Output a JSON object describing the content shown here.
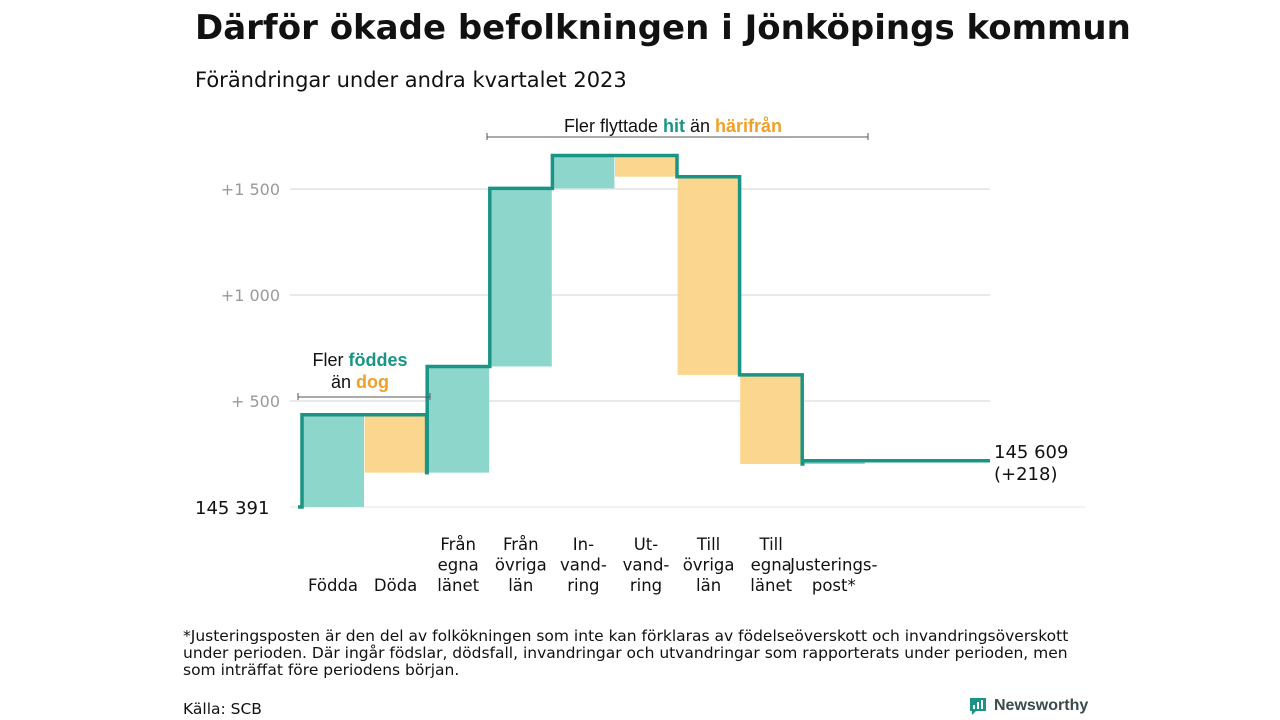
{
  "title": "Därför ökade befolkningen i Jönköpings kommun",
  "subtitle": "Förändringar under andra kvartalet 2023",
  "footnote": "*Justeringsposten är den del av folkökningen som inte kan förklaras av födelseöverskott och invandringsöverskott under perioden. Där ingår födslar, dödsfall, invandringar och utvandringar som rapporterats under perioden, men som inträffat före periodens början.",
  "source": "Källa: SCB",
  "brand": "Newsworthy",
  "colors": {
    "increase": "#8dd6cc",
    "decrease": "#fbd68e",
    "line": "#1a9484",
    "accent_teal": "#1a9484",
    "accent_orange": "#f0a028",
    "grid": "#e2e2e2"
  },
  "chart_data": {
    "type": "waterfall",
    "start_label": "145   391",
    "start_value": 145391,
    "end_label_line1": "145 609",
    "end_label_line2": "(+218)",
    "end_value": 145609,
    "y_axis": {
      "min": 0,
      "max": 1670,
      "ticks": [
        {
          "value": 500,
          "label": "+   500"
        },
        {
          "value": 1000,
          "label": "+1   000"
        },
        {
          "value": 1500,
          "label": "+1   500"
        }
      ],
      "grid": true
    },
    "steps": [
      {
        "label_lines": [
          "",
          "",
          "Födda"
        ],
        "change": 435,
        "kind": "increase"
      },
      {
        "label_lines": [
          "",
          "",
          "Döda"
        ],
        "change": -273,
        "kind": "decrease"
      },
      {
        "label_lines": [
          "Från",
          "egna",
          "länet"
        ],
        "change": 501,
        "kind": "increase"
      },
      {
        "label_lines": [
          "Från",
          "övriga",
          "län"
        ],
        "change": 840,
        "kind": "increase"
      },
      {
        "label_lines": [
          "In-",
          "vand-",
          "ring"
        ],
        "change": 155,
        "kind": "increase"
      },
      {
        "label_lines": [
          "Ut-",
          "vand-",
          "ring"
        ],
        "change": -100,
        "kind": "decrease"
      },
      {
        "label_lines": [
          "Till",
          "övriga",
          "län"
        ],
        "change": -935,
        "kind": "decrease"
      },
      {
        "label_lines": [
          "Till",
          "egna",
          "länet"
        ],
        "change": -420,
        "kind": "decrease"
      },
      {
        "label_lines": [
          "",
          "Justerings-",
          "post*"
        ],
        "change": 15,
        "kind": "increase"
      }
    ],
    "annotations": [
      {
        "id": "births",
        "line1": "Fler ",
        "hl1": "föddes",
        "line2": "än ",
        "hl2": "dog"
      },
      {
        "id": "moves",
        "line1": "Fler flyttade ",
        "hl1": "hit",
        "line2": "än ",
        "hl2": "härifrån"
      }
    ]
  }
}
